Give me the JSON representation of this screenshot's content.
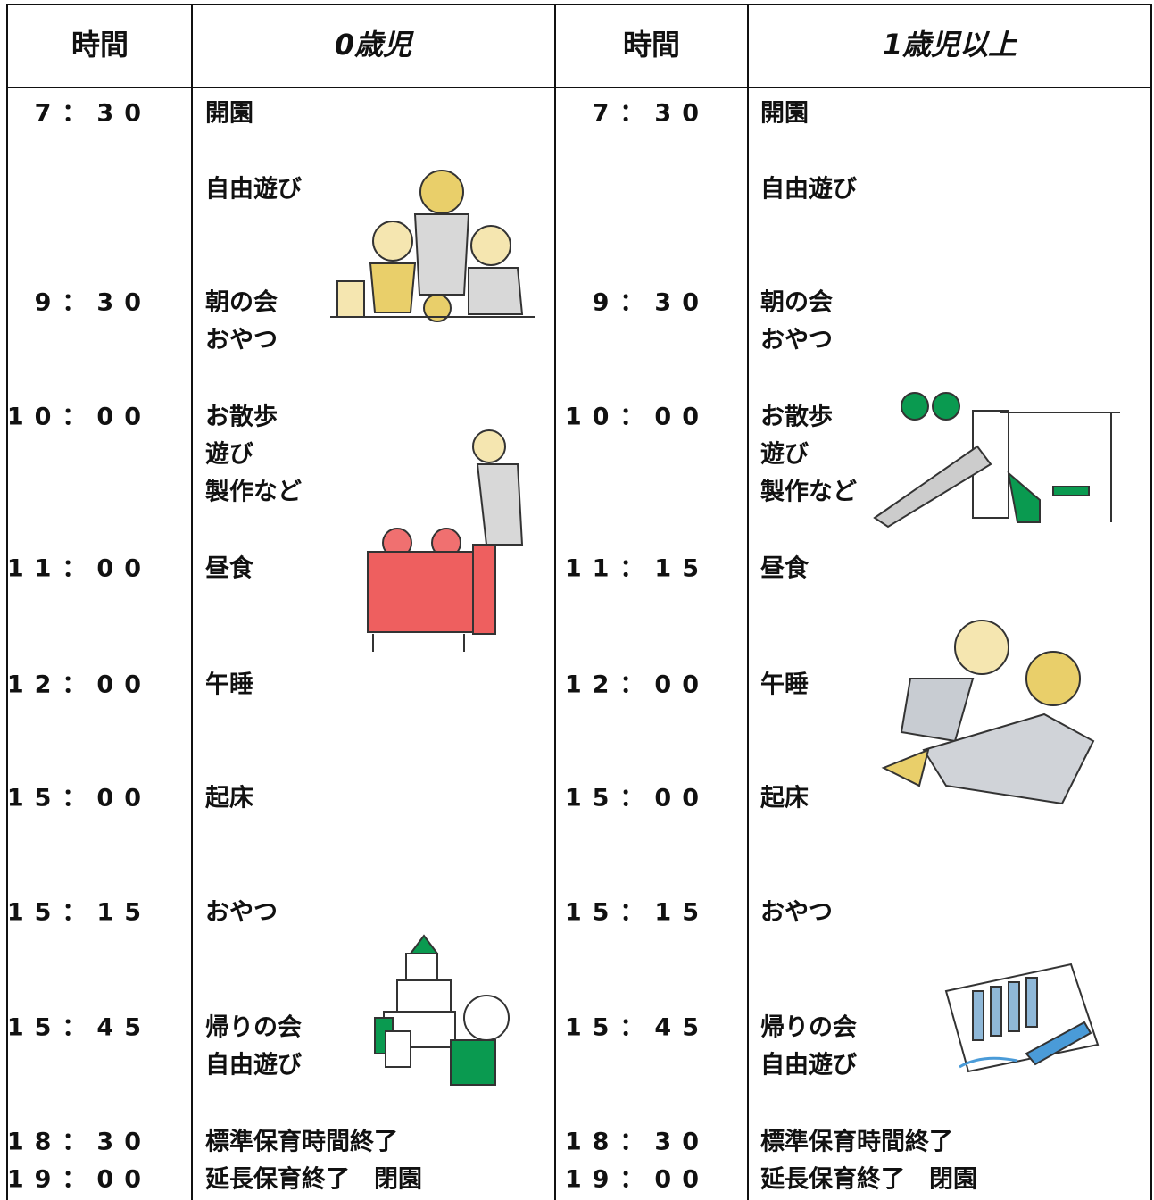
{
  "header": [
    "時間",
    "0歳児",
    "時間",
    "1歳児以上"
  ],
  "schedules": [
    {
      "rows": [
        {
          "time": "7：30",
          "items": [
            "開園"
          ]
        },
        {
          "time": null,
          "items": [
            "自由遊び"
          ]
        },
        {
          "time": "9：30",
          "items": [
            "朝の会",
            "おやつ"
          ]
        },
        {
          "time": "10：00",
          "items": [
            "お散歩",
            "遊び",
            "製作など"
          ]
        },
        {
          "time": "11：00",
          "items": [
            "昼食"
          ]
        },
        {
          "time": "12：00",
          "items": [
            "午睡"
          ]
        },
        {
          "time": "15：00",
          "items": [
            "起床"
          ]
        },
        {
          "time": "15：15",
          "items": [
            "おやつ"
          ]
        },
        {
          "time": "15：45",
          "items": [
            "帰りの会",
            "自由遊び"
          ]
        },
        {
          "time": "18：30",
          "items": [
            "標準保育時間終了"
          ]
        },
        {
          "time": "19：00",
          "items": [
            "延長保育終了　閉園"
          ]
        }
      ]
    },
    {
      "rows": [
        {
          "time": "7：30",
          "items": [
            "開園"
          ]
        },
        {
          "time": null,
          "items": [
            "自由遊び"
          ]
        },
        {
          "time": "9：30",
          "items": [
            "朝の会",
            "おやつ"
          ]
        },
        {
          "time": "10：00",
          "items": [
            "お散歩",
            "遊び",
            "製作など"
          ]
        },
        {
          "time": "11：15",
          "items": [
            "昼食"
          ]
        },
        {
          "time": "12：00",
          "items": [
            "午睡"
          ]
        },
        {
          "time": "15：00",
          "items": [
            "起床"
          ]
        },
        {
          "time": "15：15",
          "items": [
            "おやつ"
          ]
        },
        {
          "time": "15：45",
          "items": [
            "帰りの会",
            "自由遊び"
          ]
        },
        {
          "time": "18：30",
          "items": [
            "標準保育時間終了"
          ]
        },
        {
          "time": "19：00",
          "items": [
            "延長保育終了　閉園"
          ]
        }
      ]
    }
  ]
}
